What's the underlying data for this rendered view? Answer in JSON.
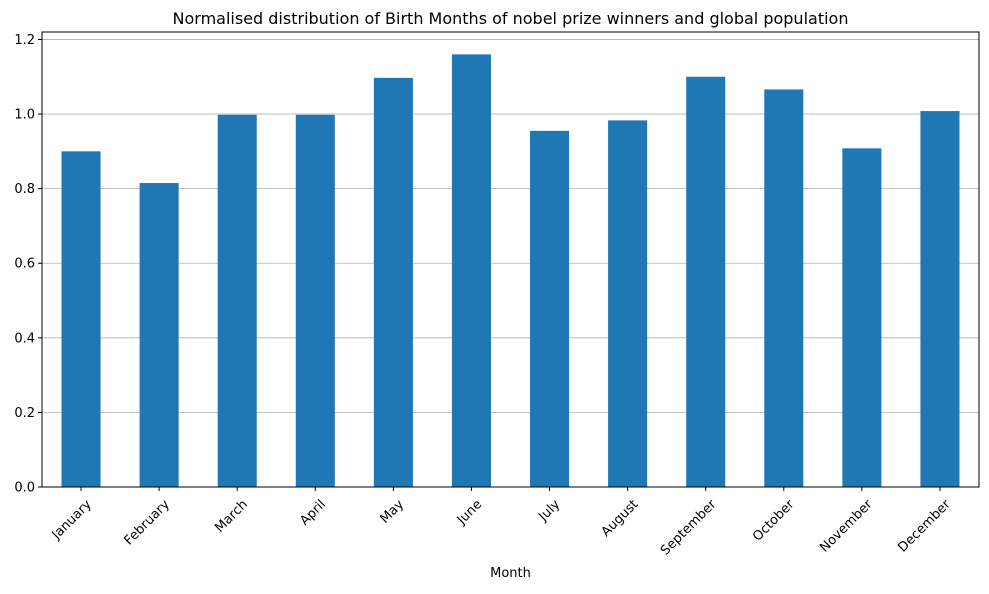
{
  "chart_data": {
    "type": "bar",
    "title": "Normalised distribution of Birth Months of nobel prize winners and global population",
    "xlabel": "Month",
    "ylabel": "",
    "categories": [
      "January",
      "February",
      "March",
      "April",
      "May",
      "June",
      "July",
      "August",
      "September",
      "October",
      "November",
      "December"
    ],
    "values": [
      0.9,
      0.815,
      0.998,
      0.998,
      1.097,
      1.16,
      0.955,
      0.983,
      1.1,
      1.066,
      0.908,
      1.008
    ],
    "ylim": [
      0,
      1.22
    ],
    "yticks": [
      "0.0",
      "0.2",
      "0.4",
      "0.6",
      "0.8",
      "1.0",
      "1.2"
    ],
    "ytick_values": [
      0,
      0.2,
      0.4,
      0.6,
      0.8,
      1.0,
      1.2
    ],
    "grid": "y",
    "legend": "none",
    "bar_color": "#1f77b4",
    "grid_color": "#b0b0b0"
  }
}
